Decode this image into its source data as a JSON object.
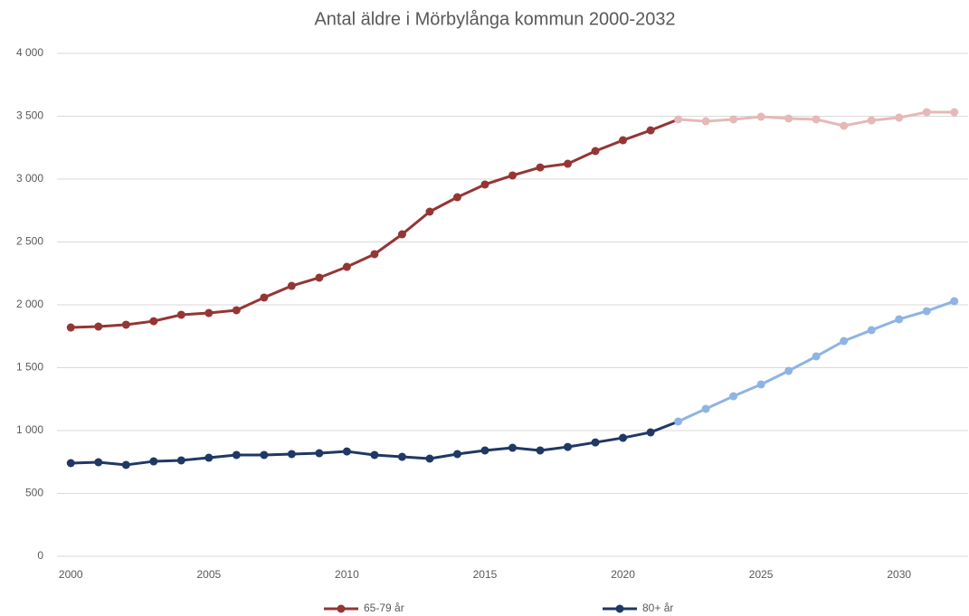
{
  "chart_data": {
    "type": "line",
    "title": "Antal äldre i Mörbylånga kommun 2000-2032",
    "x": [
      2000,
      2001,
      2002,
      2003,
      2004,
      2005,
      2006,
      2007,
      2008,
      2009,
      2010,
      2011,
      2012,
      2013,
      2014,
      2015,
      2016,
      2017,
      2018,
      2019,
      2020,
      2021,
      2022,
      2023,
      2024,
      2025,
      2026,
      2027,
      2028,
      2029,
      2030,
      2031,
      2032
    ],
    "forecast_from": 2022,
    "series": [
      {
        "name": "65-79 år",
        "color": "#943634",
        "forecast_color": "#e6b8b7",
        "values": [
          1820,
          1827,
          1842,
          1870,
          1921,
          1935,
          1957,
          2058,
          2151,
          2216,
          2302,
          2403,
          2561,
          2741,
          2856,
          2957,
          3029,
          3093,
          3122,
          3223,
          3309,
          3388,
          3475,
          3460,
          3475,
          3496,
          3482,
          3475,
          3424,
          3467,
          3489,
          3532,
          3532
        ]
      },
      {
        "name": "80+ år",
        "color": "#1f3864",
        "forecast_color": "#8eb4e3",
        "values": [
          741,
          748,
          727,
          755,
          763,
          784,
          806,
          806,
          813,
          820,
          834,
          806,
          791,
          777,
          813,
          842,
          863,
          842,
          870,
          906,
          942,
          986,
          1072,
          1173,
          1273,
          1367,
          1475,
          1590,
          1712,
          1799,
          1885,
          1950,
          2029
        ]
      }
    ],
    "xlim": [
      1999.5,
      2032.5
    ],
    "xticks": [
      2000,
      2005,
      2010,
      2015,
      2020,
      2025,
      2030
    ],
    "ylim": [
      0,
      4000
    ],
    "yticks": [
      0,
      500,
      {
        "value": 1000,
        "label": "1 000"
      },
      {
        "value": 1500,
        "label": "1 500"
      },
      {
        "value": 2000,
        "label": "2 000"
      },
      {
        "value": 2500,
        "label": "2 500"
      },
      {
        "value": 3000,
        "label": "3 000"
      },
      {
        "value": 3500,
        "label": "3 500"
      },
      {
        "value": 4000,
        "label": "4 000"
      }
    ],
    "grid": true,
    "legend": "bottom"
  }
}
